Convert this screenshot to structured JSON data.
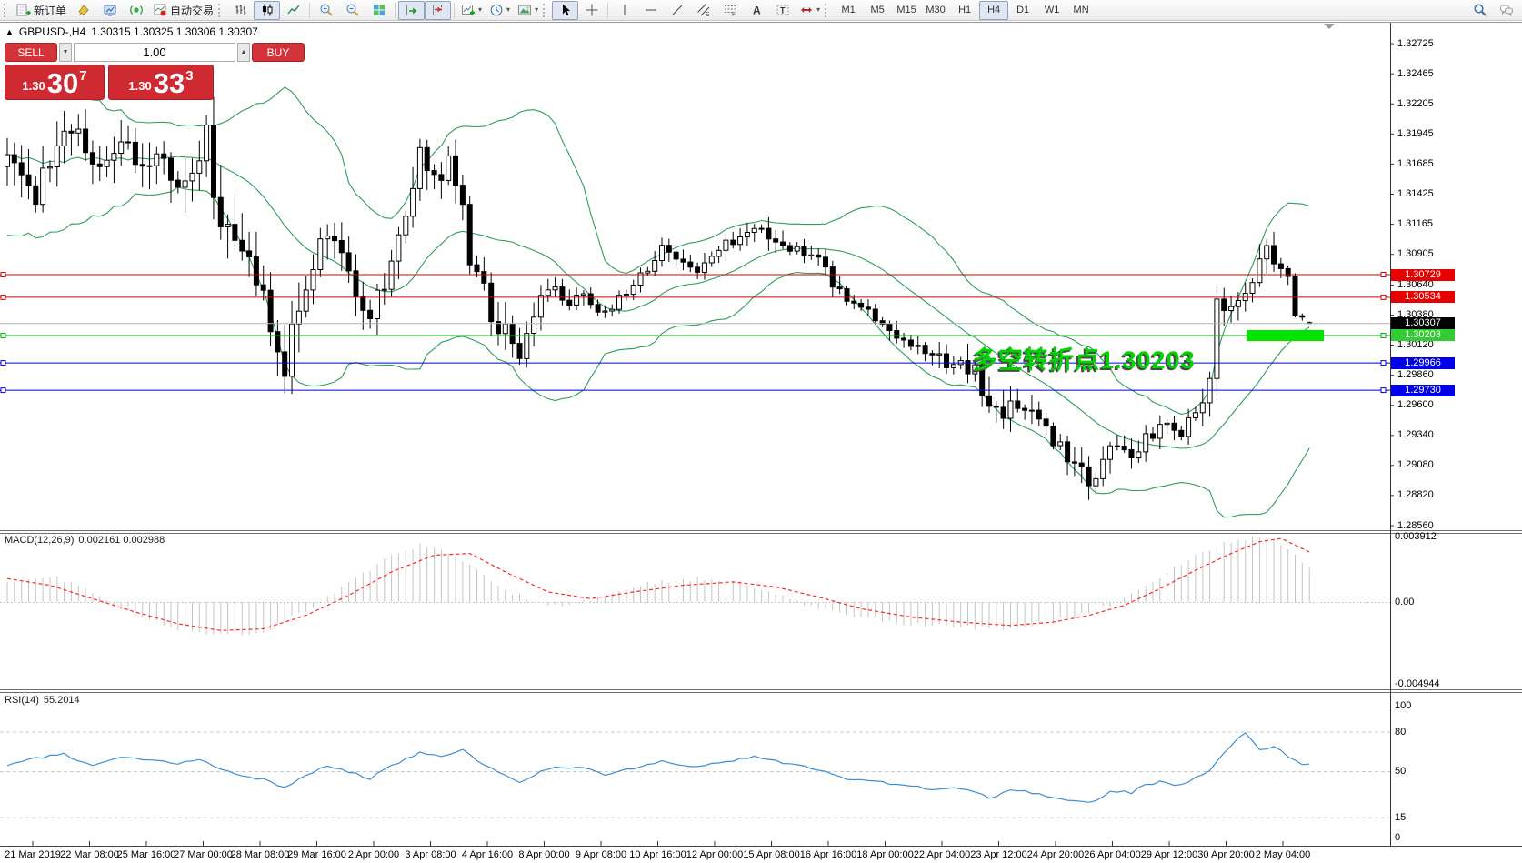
{
  "toolbar": {
    "new_order_label": "新订单",
    "autotrading_label": "自动交易",
    "timeframes": [
      "M1",
      "M5",
      "M15",
      "M30",
      "H1",
      "H4",
      "D1",
      "W1",
      "MN"
    ],
    "active_timeframe": "H4"
  },
  "title": {
    "marker": "▲",
    "symbol": "GBPUSD-,H4",
    "ohlc": "1.30315 1.30325 1.30306 1.30307"
  },
  "trade": {
    "sell_label": "SELL",
    "buy_label": "BUY",
    "volume": "1.00",
    "sell_small": "1.30",
    "sell_big": "30",
    "sell_sup": "7",
    "buy_small": "1.30",
    "buy_big": "33",
    "buy_sup": "3"
  },
  "macd_panel": {
    "name": "MACD(12,26,9)",
    "values": "0.002161 0.002988"
  },
  "rsi_panel": {
    "name": "RSI(14)",
    "value": "55.2014"
  },
  "annotation": {
    "text": "多空转折点1.30203"
  },
  "colors": {
    "trade_red": "#cf2931",
    "annotation_green": "#00d300",
    "highlight_green": "#00e400",
    "level_red": "#d40000",
    "level_blue": "#0000cc",
    "level_green": "#00b400",
    "current_price_gray": "#b4b4b4",
    "bollinger_green": "#2f9e5a",
    "macd_hist_gray": "#c4c4c4",
    "macd_signal_red": "#ff2a2a",
    "rsi_blue": "#3e8ed0"
  },
  "chart_data": {
    "type": "candlestick",
    "symbol": "GBPUSD-",
    "timeframe": "H4",
    "ohlc_current": {
      "open": 1.30315,
      "high": 1.30325,
      "low": 1.30306,
      "close": 1.30307
    },
    "bars": 184,
    "last_candle": [
      1.30315,
      1.30325,
      1.30306,
      1.30307
    ],
    "close_waypoints": [
      [
        0,
        1.317
      ],
      [
        2,
        1.315
      ],
      [
        4,
        1.3132
      ],
      [
        6,
        1.3175
      ],
      [
        9,
        1.3203
      ],
      [
        11,
        1.3178
      ],
      [
        13,
        1.3166
      ],
      [
        16,
        1.3192
      ],
      [
        18,
        1.317
      ],
      [
        21,
        1.3177
      ],
      [
        24,
        1.3154
      ],
      [
        26,
        1.3165
      ],
      [
        27,
        1.3185
      ],
      [
        28,
        1.3215
      ],
      [
        29,
        1.3139
      ],
      [
        31,
        1.312
      ],
      [
        33,
        1.3094
      ],
      [
        35,
        1.3072
      ],
      [
        37,
        1.303
      ],
      [
        39,
        1.2993
      ],
      [
        41,
        1.304
      ],
      [
        43,
        1.308
      ],
      [
        45,
        1.3109
      ],
      [
        47,
        1.3085
      ],
      [
        48,
        1.3079
      ],
      [
        51,
        1.303
      ],
      [
        53,
        1.307
      ],
      [
        55,
        1.3102
      ],
      [
        58,
        1.3173
      ],
      [
        60,
        1.315
      ],
      [
        61,
        1.3158
      ],
      [
        62,
        1.3169
      ],
      [
        64,
        1.314
      ],
      [
        65,
        1.309
      ],
      [
        67,
        1.3075
      ],
      [
        68,
        1.3042
      ],
      [
        70,
        1.302
      ],
      [
        72,
        1.3
      ],
      [
        74,
        1.304
      ],
      [
        77,
        1.3064
      ],
      [
        79,
        1.305
      ],
      [
        81,
        1.3057
      ],
      [
        84,
        1.3038
      ],
      [
        86,
        1.305
      ],
      [
        88,
        1.3064
      ],
      [
        90,
        1.308
      ],
      [
        92,
        1.3094
      ],
      [
        95,
        1.3085
      ],
      [
        97,
        1.3079
      ],
      [
        99,
        1.309
      ],
      [
        101,
        1.3098
      ],
      [
        103,
        1.3108
      ],
      [
        105,
        1.3117
      ],
      [
        107,
        1.3105
      ],
      [
        110,
        1.3098
      ],
      [
        112,
        1.309
      ],
      [
        114,
        1.3083
      ],
      [
        116,
        1.3065
      ],
      [
        118,
        1.3049
      ],
      [
        120,
        1.3045
      ],
      [
        121,
        1.3042
      ],
      [
        123,
        1.303
      ],
      [
        125,
        1.3019
      ],
      [
        127,
        1.301
      ],
      [
        130,
        1.3
      ],
      [
        133,
        1.2997
      ],
      [
        135,
        1.2993
      ],
      [
        136,
        1.2989
      ],
      [
        137,
        1.2975
      ],
      [
        138,
        1.2952
      ],
      [
        140,
        1.2958
      ],
      [
        143,
        1.2959
      ],
      [
        145,
        1.295
      ],
      [
        146,
        1.294
      ],
      [
        148,
        1.2925
      ],
      [
        149,
        1.2914
      ],
      [
        151,
        1.29
      ],
      [
        153,
        1.2891
      ],
      [
        155,
        1.2921
      ],
      [
        157,
        1.2918
      ],
      [
        158,
        1.2914
      ],
      [
        160,
        1.293
      ],
      [
        162,
        1.2944
      ],
      [
        164,
        1.294
      ],
      [
        165,
        1.2937
      ],
      [
        167,
        1.295
      ],
      [
        168,
        1.2955
      ],
      [
        169,
        1.2975
      ],
      [
        170,
        1.304
      ],
      [
        172,
        1.305
      ],
      [
        174,
        1.3057
      ],
      [
        176,
        1.308
      ],
      [
        177,
        1.3098
      ],
      [
        178,
        1.3085
      ],
      [
        179,
        1.3075
      ],
      [
        180,
        1.3068
      ],
      [
        181,
        1.304
      ],
      [
        182,
        1.3035
      ],
      [
        183,
        1.30307
      ]
    ],
    "volatility_waypoints": [
      [
        0,
        0.0035
      ],
      [
        9,
        0.003
      ],
      [
        16,
        0.0028
      ],
      [
        24,
        0.003
      ],
      [
        28,
        0.0052
      ],
      [
        33,
        0.0035
      ],
      [
        39,
        0.004
      ],
      [
        45,
        0.0028
      ],
      [
        51,
        0.0025
      ],
      [
        58,
        0.0028
      ],
      [
        64,
        0.0022
      ],
      [
        70,
        0.003
      ],
      [
        77,
        0.0016
      ],
      [
        88,
        0.0013
      ],
      [
        97,
        0.0012
      ],
      [
        105,
        0.0015
      ],
      [
        114,
        0.0015
      ],
      [
        121,
        0.0013
      ],
      [
        130,
        0.0015
      ],
      [
        138,
        0.0026
      ],
      [
        146,
        0.0018
      ],
      [
        153,
        0.0022
      ],
      [
        158,
        0.0015
      ],
      [
        165,
        0.0013
      ],
      [
        169,
        0.0022
      ],
      [
        170,
        0.0035
      ],
      [
        174,
        0.0016
      ],
      [
        177,
        0.002
      ],
      [
        180,
        0.0012
      ],
      [
        183,
        0.0004
      ]
    ],
    "bollinger": {
      "period": 20,
      "deviation": 2,
      "color": "#2f9e5a"
    },
    "horizontal_levels": [
      {
        "price": 1.30729,
        "color": "#d40000",
        "role": "object"
      },
      {
        "price": 1.30534,
        "color": "#d40000",
        "role": "object"
      },
      {
        "price": 1.30307,
        "color": "#b4b4b4",
        "role": "current-price"
      },
      {
        "price": 1.30203,
        "color": "#00b400",
        "role": "object"
      },
      {
        "price": 1.29966,
        "color": "#0000cc",
        "role": "object"
      },
      {
        "price": 1.2973,
        "color": "#0000cc",
        "role": "object"
      }
    ],
    "price_badges": [
      {
        "text": "1.30729",
        "price": 1.30729,
        "bg": "#e60000"
      },
      {
        "text": "1.30534",
        "price": 1.30534,
        "bg": "#e60000"
      },
      {
        "text": "1.30307",
        "price": 1.30307,
        "bg": "#000000"
      },
      {
        "text": "1.30203",
        "price": 1.30203,
        "bg": "#33cc33"
      },
      {
        "text": "1.29966",
        "price": 1.29966,
        "bg": "#0000e6"
      },
      {
        "text": "1.29730",
        "price": 1.2973,
        "bg": "#0000e6"
      }
    ],
    "highlight_bar": {
      "price": 1.30203,
      "color": "#00e400"
    },
    "price_axis_ticks": [
      "1.32725",
      "1.32465",
      "1.32205",
      "1.31945",
      "1.31685",
      "1.31425",
      "1.31165",
      "1.30905",
      "1.30640",
      "1.30380",
      "1.30120",
      "1.29860",
      "1.29600",
      "1.29340",
      "1.29080",
      "1.28820",
      "1.28560"
    ],
    "time_axis_labels": [
      "21 Mar 2019",
      "22 Mar 08:00",
      "25 Mar 16:00",
      "27 Mar 00:00",
      "28 Mar 08:00",
      "29 Mar 16:00",
      "2 Apr 00:00",
      "3 Apr 08:00",
      "4 Apr 16:00",
      "8 Apr 00:00",
      "9 Apr 08:00",
      "10 Apr 16:00",
      "12 Apr 00:00",
      "15 Apr 08:00",
      "16 Apr 16:00",
      "18 Apr 00:00",
      "22 Apr 04:00",
      "23 Apr 12:00",
      "24 Apr 20:00",
      "26 Apr 04:00",
      "29 Apr 12:00",
      "30 Apr 20:00",
      "2 May 04:00"
    ],
    "macd": {
      "params": "12,26,9",
      "value": 0.002161,
      "signal_value": 0.002988,
      "scale_labels": [
        {
          "text": "0.003912",
          "v": 0.003912
        },
        {
          "text": "0.00",
          "v": 0.0
        },
        {
          "text": "-0.004944",
          "v": -0.004944
        }
      ],
      "hist_waypoints": [
        [
          0,
          0.0012
        ],
        [
          6,
          0.0016
        ],
        [
          12,
          0.0006
        ],
        [
          18,
          -0.0008
        ],
        [
          24,
          -0.0016
        ],
        [
          30,
          -0.002
        ],
        [
          36,
          -0.0018
        ],
        [
          42,
          -0.0005
        ],
        [
          48,
          0.0012
        ],
        [
          54,
          0.0028
        ],
        [
          58,
          0.0034
        ],
        [
          63,
          0.0028
        ],
        [
          68,
          0.0012
        ],
        [
          73,
          0.0002
        ],
        [
          78,
          -0.0003
        ],
        [
          84,
          0.0004
        ],
        [
          90,
          0.0011
        ],
        [
          97,
          0.0014
        ],
        [
          103,
          0.0012
        ],
        [
          108,
          0.0005
        ],
        [
          113,
          -0.0003
        ],
        [
          119,
          -0.0009
        ],
        [
          126,
          -0.0013
        ],
        [
          133,
          -0.0015
        ],
        [
          140,
          -0.0016
        ],
        [
          146,
          -0.0012
        ],
        [
          151,
          -0.0007
        ],
        [
          156,
          0.0
        ],
        [
          161,
          0.0012
        ],
        [
          166,
          0.0025
        ],
        [
          171,
          0.0035
        ],
        [
          175,
          0.0039
        ],
        [
          178,
          0.0036
        ],
        [
          181,
          0.0028
        ],
        [
          183,
          0.00216
        ]
      ],
      "signal_waypoints": [
        [
          0,
          0.0014
        ],
        [
          6,
          0.001
        ],
        [
          12,
          0.0002
        ],
        [
          18,
          -0.0006
        ],
        [
          24,
          -0.0013
        ],
        [
          30,
          -0.0017
        ],
        [
          36,
          -0.0016
        ],
        [
          42,
          -0.0008
        ],
        [
          48,
          0.0004
        ],
        [
          54,
          0.0018
        ],
        [
          60,
          0.0028
        ],
        [
          65,
          0.0029
        ],
        [
          70,
          0.0018
        ],
        [
          76,
          0.0006
        ],
        [
          82,
          0.0002
        ],
        [
          88,
          0.0006
        ],
        [
          95,
          0.001
        ],
        [
          102,
          0.0012
        ],
        [
          108,
          0.0009
        ],
        [
          114,
          0.0003
        ],
        [
          120,
          -0.0004
        ],
        [
          127,
          -0.0009
        ],
        [
          134,
          -0.0012
        ],
        [
          141,
          -0.0014
        ],
        [
          147,
          -0.0012
        ],
        [
          152,
          -0.0008
        ],
        [
          157,
          -0.0002
        ],
        [
          162,
          0.0008
        ],
        [
          167,
          0.0019
        ],
        [
          172,
          0.0029
        ],
        [
          176,
          0.0036
        ],
        [
          179,
          0.0038
        ],
        [
          181,
          0.0034
        ],
        [
          183,
          0.00299
        ]
      ]
    },
    "rsi": {
      "period": 14,
      "value": 55.2014,
      "levels": [
        80,
        50,
        15
      ],
      "scale_labels": [
        {
          "text": "100",
          "v": 100
        },
        {
          "text": "80",
          "v": 80
        },
        {
          "text": "50",
          "v": 50
        },
        {
          "text": "15",
          "v": 15
        },
        {
          "text": "0",
          "v": 0
        }
      ],
      "waypoints": [
        [
          0,
          55
        ],
        [
          4,
          60
        ],
        [
          8,
          63
        ],
        [
          12,
          55
        ],
        [
          16,
          61
        ],
        [
          21,
          58
        ],
        [
          24,
          55
        ],
        [
          27,
          60
        ],
        [
          31,
          50
        ],
        [
          36,
          44
        ],
        [
          39,
          38
        ],
        [
          43,
          50
        ],
        [
          45,
          55
        ],
        [
          48,
          50
        ],
        [
          51,
          45
        ],
        [
          55,
          57
        ],
        [
          58,
          65
        ],
        [
          61,
          62
        ],
        [
          64,
          66
        ],
        [
          67,
          55
        ],
        [
          70,
          48
        ],
        [
          72,
          42
        ],
        [
          75,
          50
        ],
        [
          77,
          54
        ],
        [
          81,
          52
        ],
        [
          84,
          48
        ],
        [
          88,
          53
        ],
        [
          92,
          58
        ],
        [
          97,
          54
        ],
        [
          101,
          57
        ],
        [
          105,
          62
        ],
        [
          110,
          55
        ],
        [
          114,
          52
        ],
        [
          118,
          45
        ],
        [
          121,
          44
        ],
        [
          125,
          40
        ],
        [
          130,
          37
        ],
        [
          133,
          37
        ],
        [
          136,
          35
        ],
        [
          138,
          30
        ],
        [
          141,
          36
        ],
        [
          143,
          35
        ],
        [
          146,
          32
        ],
        [
          149,
          29
        ],
        [
          153,
          27
        ],
        [
          155,
          36
        ],
        [
          158,
          34
        ],
        [
          160,
          40
        ],
        [
          162,
          42
        ],
        [
          164,
          39
        ],
        [
          165,
          40
        ],
        [
          167,
          46
        ],
        [
          169,
          50
        ],
        [
          170,
          58
        ],
        [
          172,
          70
        ],
        [
          174,
          80
        ],
        [
          176,
          66
        ],
        [
          178,
          70
        ],
        [
          180,
          62
        ],
        [
          182,
          56
        ],
        [
          183,
          55.2
        ]
      ]
    }
  }
}
